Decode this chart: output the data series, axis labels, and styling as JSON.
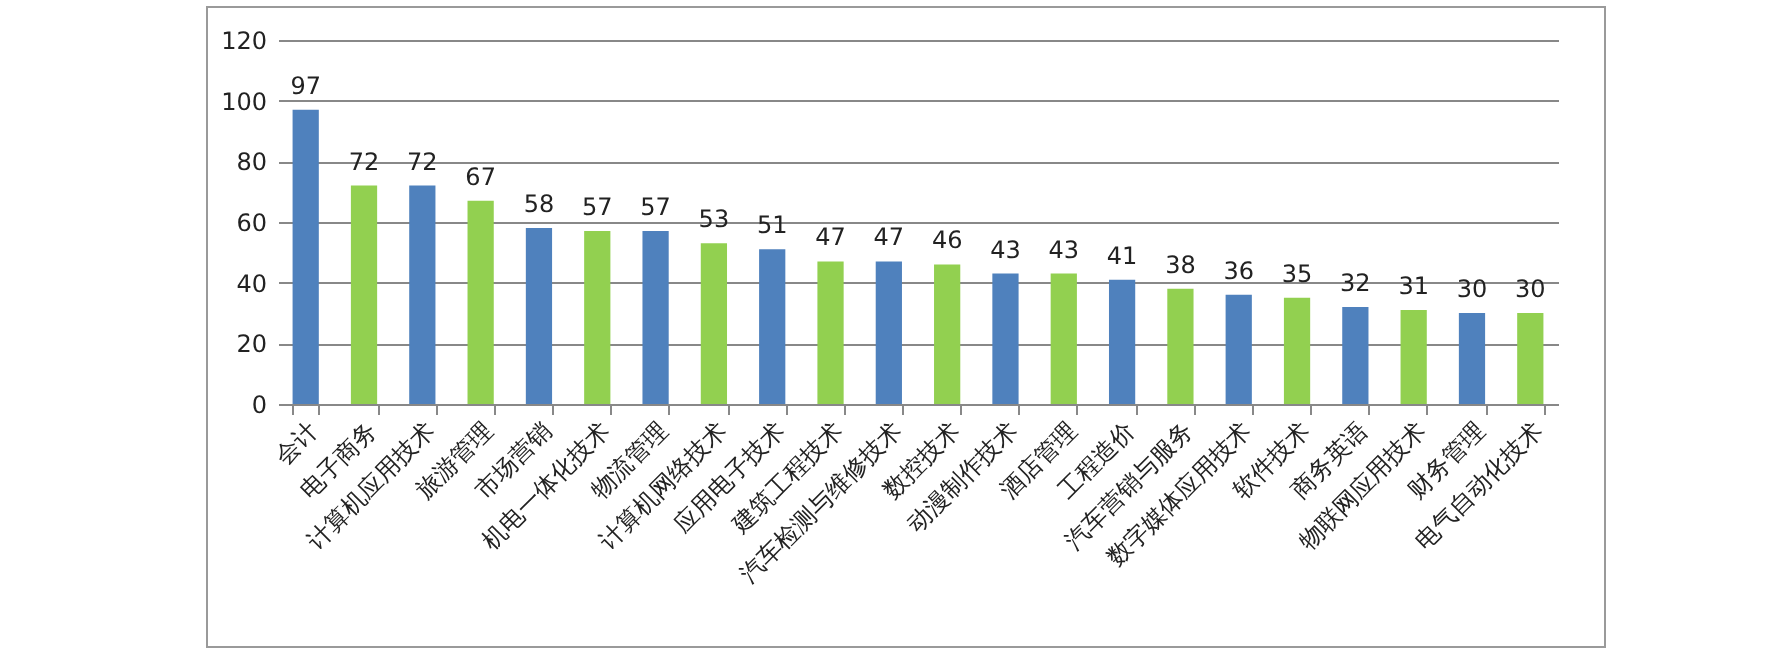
{
  "chart_data": {
    "type": "bar",
    "categories": [
      "会计",
      "电子商务",
      "计算机应用技术",
      "旅游管理",
      "市场营销",
      "机电一体化技术",
      "物流管理",
      "计算机网络技术",
      "应用电子技术",
      "建筑工程技术",
      "汽车检测与维修技术",
      "数控技术",
      "动漫制作技术",
      "酒店管理",
      "工程造价",
      "汽车营销与服务",
      "数字媒体应用技术",
      "软件技术",
      "商务英语",
      "物联网应用技术",
      "财务管理",
      "电气自动化技术"
    ],
    "values": [
      97,
      72,
      72,
      67,
      58,
      57,
      57,
      53,
      51,
      47,
      47,
      46,
      43,
      43,
      41,
      38,
      36,
      35,
      32,
      31,
      30,
      30
    ],
    "colors": [
      "#4f81bd",
      "#92d050",
      "#4f81bd",
      "#92d050",
      "#4f81bd",
      "#92d050",
      "#4f81bd",
      "#92d050",
      "#4f81bd",
      "#92d050",
      "#4f81bd",
      "#92d050",
      "#4f81bd",
      "#92d050",
      "#4f81bd",
      "#92d050",
      "#4f81bd",
      "#92d050",
      "#4f81bd",
      "#92d050",
      "#4f81bd",
      "#92d050"
    ],
    "ylim": [
      0,
      120
    ],
    "yticks": [
      0,
      20,
      40,
      60,
      80,
      100,
      120
    ],
    "grid": "y",
    "data_labels": true
  }
}
